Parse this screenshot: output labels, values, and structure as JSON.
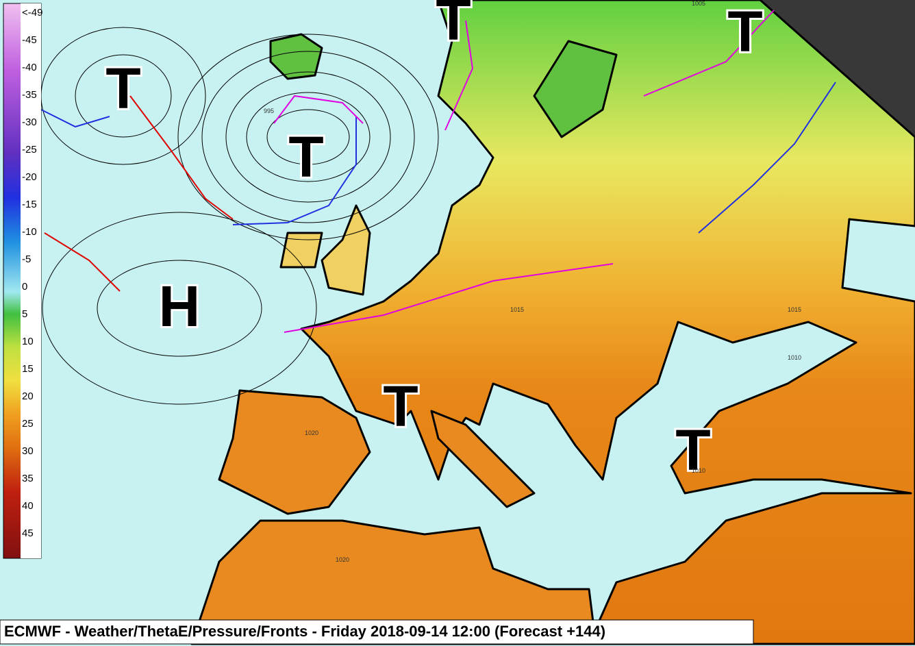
{
  "legend": {
    "labels": [
      "<-49",
      "-45",
      "-40",
      "-35",
      "-30",
      "-25",
      "-20",
      "-15",
      "-10",
      "-5",
      "0",
      "5",
      "10",
      "15",
      "20",
      "25",
      "30",
      "35",
      "40",
      "45"
    ]
  },
  "pressure_centers": [
    {
      "label": "T"
    },
    {
      "label": "T"
    },
    {
      "label": "T"
    },
    {
      "label": "T"
    },
    {
      "label": "T"
    },
    {
      "label": "T"
    },
    {
      "label": "H"
    }
  ],
  "isobar_labels": [
    "1015",
    "1020",
    "1010",
    "1005",
    "995",
    "1015",
    "1020",
    "1010"
  ],
  "caption": "ECMWF - Weather/ThetaE/Pressure/Fronts - Friday 2018-09-14 12:00 (Forecast +144)"
}
